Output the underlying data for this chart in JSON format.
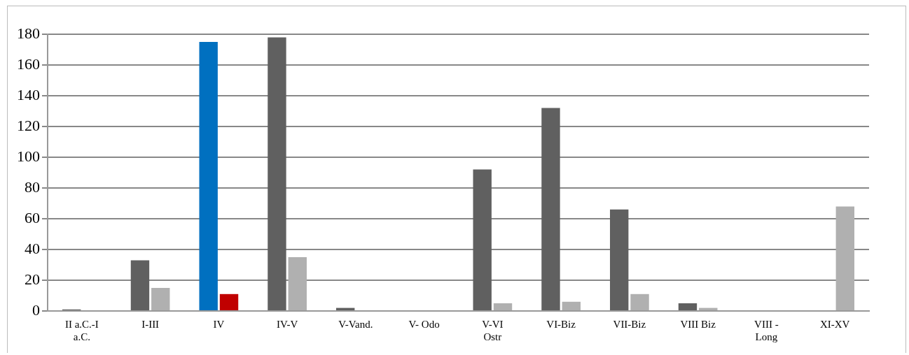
{
  "chart_data": {
    "type": "bar",
    "categories": [
      "II a.C.-I a.C.",
      "I-III",
      "IV",
      "IV-V",
      "V-Vand.",
      "V- Odo",
      "V-VI Ostr",
      "VI-Biz",
      "VII-Biz",
      "VIII Biz",
      "VIII - Long",
      "XI-XV"
    ],
    "series": [
      {
        "colors": [
          "#606060",
          "#606060",
          "#0070c0",
          "#606060",
          "#606060",
          "#606060",
          "#606060",
          "#606060",
          "#606060",
          "#606060",
          "#606060",
          "#606060"
        ],
        "values": [
          1,
          33,
          175,
          178,
          2,
          0,
          92,
          132,
          66,
          5,
          0,
          0
        ]
      },
      {
        "colors": [
          "#b0b0b0",
          "#b0b0b0",
          "#c00000",
          "#b0b0b0",
          "#b0b0b0",
          "#b0b0b0",
          "#b0b0b0",
          "#b0b0b0",
          "#b0b0b0",
          "#b0b0b0",
          "#b0b0b0",
          "#b0b0b0"
        ],
        "values": [
          0,
          15,
          11,
          35,
          0,
          0,
          5,
          6,
          11,
          2,
          0,
          68
        ]
      }
    ],
    "ylim": [
      0,
      180
    ],
    "yticks": [
      0,
      20,
      40,
      60,
      80,
      100,
      120,
      140,
      160,
      180
    ],
    "grid": "y",
    "legend": false
  }
}
